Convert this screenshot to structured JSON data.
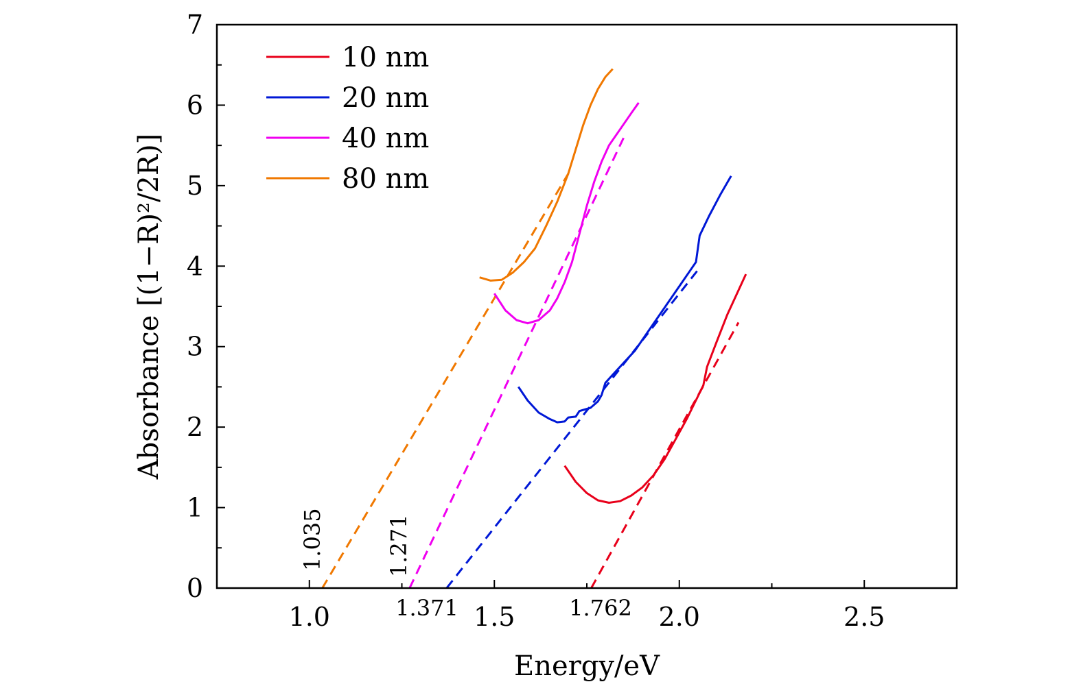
{
  "chart_data": {
    "type": "line",
    "title": "",
    "xlabel": "Energy/eV",
    "ylabel": "Absorbance [(1−R)²/2R)]",
    "xlim": [
      0.75,
      2.75
    ],
    "ylim": [
      0,
      7
    ],
    "x_ticks": [
      "1.0",
      "1.5",
      "2.0",
      "2.5"
    ],
    "y_ticks": [
      "0",
      "1",
      "2",
      "3",
      "4",
      "5",
      "6",
      "7"
    ],
    "grid": false,
    "legend_position": "top-left",
    "series": [
      {
        "name": "10 nm",
        "color": "#e8001a",
        "points": [
          [
            1.69,
            1.52
          ],
          [
            1.72,
            1.32
          ],
          [
            1.75,
            1.18
          ],
          [
            1.78,
            1.09
          ],
          [
            1.81,
            1.06
          ],
          [
            1.84,
            1.08
          ],
          [
            1.87,
            1.15
          ],
          [
            1.9,
            1.25
          ],
          [
            1.93,
            1.4
          ],
          [
            1.96,
            1.6
          ],
          [
            1.99,
            1.85
          ],
          [
            2.02,
            2.1
          ],
          [
            2.05,
            2.38
          ],
          [
            2.065,
            2.52
          ],
          [
            2.075,
            2.75
          ],
          [
            2.1,
            3.05
          ],
          [
            2.13,
            3.4
          ],
          [
            2.16,
            3.7
          ],
          [
            2.18,
            3.9
          ]
        ]
      },
      {
        "name": "20 nm",
        "color": "#0018d6",
        "points": [
          [
            1.565,
            2.5
          ],
          [
            1.59,
            2.33
          ],
          [
            1.62,
            2.18
          ],
          [
            1.65,
            2.1
          ],
          [
            1.67,
            2.06
          ],
          [
            1.69,
            2.07
          ],
          [
            1.7,
            2.12
          ],
          [
            1.72,
            2.13
          ],
          [
            1.73,
            2.2
          ],
          [
            1.76,
            2.24
          ],
          [
            1.78,
            2.32
          ],
          [
            1.79,
            2.4
          ],
          [
            1.8,
            2.55
          ],
          [
            1.82,
            2.65
          ],
          [
            1.85,
            2.8
          ],
          [
            1.88,
            2.95
          ],
          [
            1.91,
            3.15
          ],
          [
            1.94,
            3.35
          ],
          [
            1.97,
            3.55
          ],
          [
            2.0,
            3.75
          ],
          [
            2.03,
            3.95
          ],
          [
            2.045,
            4.05
          ],
          [
            2.055,
            4.38
          ],
          [
            2.08,
            4.62
          ],
          [
            2.11,
            4.88
          ],
          [
            2.14,
            5.12
          ]
        ]
      },
      {
        "name": "40 nm",
        "color": "#f000f0",
        "points": [
          [
            1.5,
            3.66
          ],
          [
            1.53,
            3.45
          ],
          [
            1.56,
            3.33
          ],
          [
            1.59,
            3.29
          ],
          [
            1.62,
            3.33
          ],
          [
            1.65,
            3.45
          ],
          [
            1.67,
            3.6
          ],
          [
            1.69,
            3.8
          ],
          [
            1.71,
            4.05
          ],
          [
            1.73,
            4.4
          ],
          [
            1.75,
            4.75
          ],
          [
            1.77,
            5.05
          ],
          [
            1.79,
            5.3
          ],
          [
            1.81,
            5.5
          ],
          [
            1.84,
            5.7
          ],
          [
            1.87,
            5.9
          ],
          [
            1.89,
            6.03
          ]
        ]
      },
      {
        "name": "80 nm",
        "color": "#f07800",
        "points": [
          [
            1.46,
            3.86
          ],
          [
            1.49,
            3.82
          ],
          [
            1.52,
            3.83
          ],
          [
            1.55,
            3.92
          ],
          [
            1.58,
            4.05
          ],
          [
            1.61,
            4.22
          ],
          [
            1.64,
            4.5
          ],
          [
            1.67,
            4.8
          ],
          [
            1.7,
            5.15
          ],
          [
            1.72,
            5.45
          ],
          [
            1.74,
            5.75
          ],
          [
            1.76,
            6.0
          ],
          [
            1.78,
            6.2
          ],
          [
            1.8,
            6.35
          ],
          [
            1.82,
            6.45
          ]
        ]
      }
    ],
    "fit_lines": [
      {
        "series": "10 nm",
        "color": "#e8001a",
        "x": [
          1.762,
          2.16
        ],
        "y": [
          0.0,
          3.3
        ]
      },
      {
        "series": "20 nm",
        "color": "#0018d6",
        "x": [
          1.371,
          2.05
        ],
        "y": [
          0.0,
          3.95
        ]
      },
      {
        "series": "40 nm",
        "color": "#f000f0",
        "x": [
          1.271,
          1.85
        ],
        "y": [
          0.0,
          5.6
        ]
      },
      {
        "series": "80 nm",
        "color": "#f07800",
        "x": [
          1.035,
          1.7
        ],
        "y": [
          0.0,
          5.15
        ]
      }
    ],
    "annotations": [
      "1.035",
      "1.271",
      "1.371",
      "1.762"
    ]
  }
}
